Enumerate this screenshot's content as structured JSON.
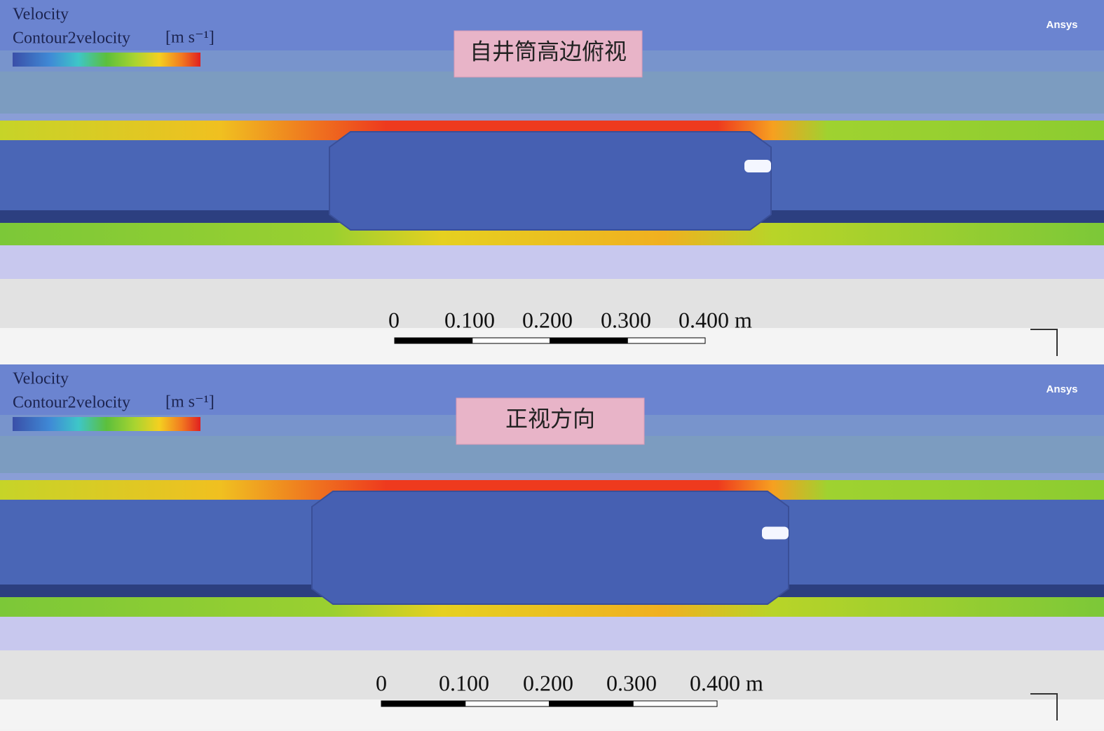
{
  "panels": [
    {
      "legend": {
        "title": "Velocity",
        "variable": "Contour2velocity",
        "unit": "[m s⁻¹]"
      },
      "label": "自井筒高边俯视",
      "brand": "Ansys",
      "scale": [
        "0",
        "0.100",
        "0.200",
        "0.300",
        "0.400 m"
      ]
    },
    {
      "legend": {
        "title": "Velocity",
        "variable": "Contour2velocity",
        "unit": "[m s⁻¹]"
      },
      "label": "正视方向",
      "brand": "Ansys",
      "scale": [
        "0",
        "0.100",
        "0.200",
        "0.300",
        "0.400 m"
      ]
    }
  ]
}
